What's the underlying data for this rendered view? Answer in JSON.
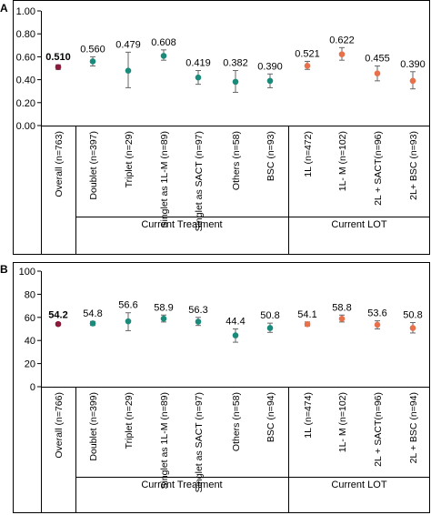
{
  "chart_data": [
    {
      "panel": "A",
      "type": "scatter",
      "subtype": "point-with-error-bars",
      "ylim": [
        0,
        1.0
      ],
      "yticks": [
        "0.00",
        "0.20",
        "0.40",
        "0.60",
        "0.80",
        "1.00"
      ],
      "grid": false,
      "categories": [
        "Overall (n=763)",
        "Doublet (n=397)",
        "Triplet (n=29)",
        "Singlet as 1L-M (n=89)",
        "Singlet as SACT (n=97)",
        "Others (n=58)",
        "BSC (n=93)",
        "1L (n=472)",
        "1L- M (n=102)",
        "2L + SACT(n=96)",
        "2L+ BSC (n=93)"
      ],
      "value_labels": [
        "0.510",
        "0.560",
        "0.479",
        "0.608",
        "0.419",
        "0.382",
        "0.390",
        "0.521",
        "0.622",
        "0.455",
        "0.390"
      ],
      "values": [
        0.51,
        0.56,
        0.479,
        0.608,
        0.419,
        0.382,
        0.39,
        0.521,
        0.622,
        0.455,
        0.39
      ],
      "lower": [
        0.49,
        0.52,
        0.33,
        0.57,
        0.36,
        0.29,
        0.33,
        0.49,
        0.57,
        0.39,
        0.32
      ],
      "upper": [
        0.53,
        0.6,
        0.64,
        0.66,
        0.48,
        0.48,
        0.45,
        0.56,
        0.68,
        0.52,
        0.47
      ],
      "colors": [
        "#8b1a3b",
        "#1a8a7a",
        "#1a8a7a",
        "#1a8a7a",
        "#1a8a7a",
        "#1a8a7a",
        "#1a8a7a",
        "#e8704a",
        "#e8704a",
        "#e8704a",
        "#e8704a"
      ],
      "bold": [
        true,
        false,
        false,
        false,
        false,
        false,
        false,
        false,
        false,
        false,
        false
      ],
      "groups": [
        {
          "label": "Current Treatment",
          "start": 1,
          "end": 6
        },
        {
          "label": "Current LOT",
          "start": 7,
          "end": 10
        }
      ]
    },
    {
      "panel": "B",
      "type": "scatter",
      "subtype": "point-with-error-bars",
      "ylim": [
        0,
        100
      ],
      "yticks": [
        "0",
        "20",
        "40",
        "60",
        "80",
        "100"
      ],
      "grid": false,
      "categories": [
        "Overall (n=766)",
        "Doublet (n=399)",
        "Triplet (n=29)",
        "Singlet as 1L-M (n=89)",
        "Singlet as SACT (n=97)",
        "Others (n=58)",
        "BSC (n=94)",
        "1L (n=474)",
        "1L- M (n=102)",
        "2L + SACT(n=96)",
        "2L + BSC (n=94)"
      ],
      "value_labels": [
        "54.2",
        "54.8",
        "56.6",
        "58.9",
        "56.3",
        "44.4",
        "50.8",
        "54.1",
        "58.8",
        "53.6",
        "50.8"
      ],
      "values": [
        54.2,
        54.8,
        56.6,
        58.9,
        56.3,
        44.4,
        50.8,
        54.1,
        58.8,
        53.6,
        50.8
      ],
      "lower": [
        53.0,
        53.0,
        48.5,
        56.0,
        53.0,
        38.5,
        47.0,
        52.5,
        56.0,
        50.0,
        46.5
      ],
      "upper": [
        55.5,
        56.5,
        64.0,
        62.0,
        60.0,
        50.0,
        55.0,
        56.0,
        62.0,
        57.0,
        55.5
      ],
      "colors": [
        "#8b1a3b",
        "#1a8a7a",
        "#1a8a7a",
        "#1a8a7a",
        "#1a8a7a",
        "#1a8a7a",
        "#1a8a7a",
        "#e8704a",
        "#e8704a",
        "#e8704a",
        "#e8704a"
      ],
      "bold": [
        true,
        false,
        false,
        false,
        false,
        false,
        false,
        false,
        false,
        false,
        false
      ],
      "groups": [
        {
          "label": "Current Treatment",
          "start": 1,
          "end": 6
        },
        {
          "label": "Current LOT",
          "start": 7,
          "end": 10
        }
      ]
    }
  ]
}
